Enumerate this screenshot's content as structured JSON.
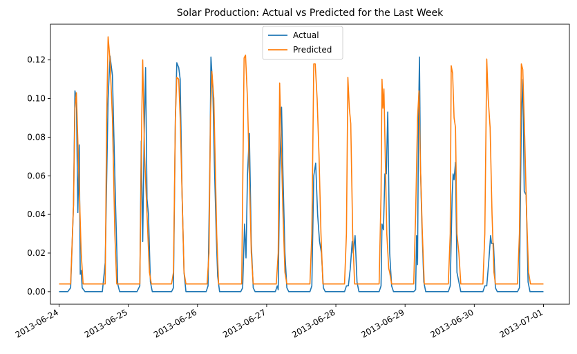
{
  "chart_data": {
    "type": "line",
    "title": "Solar Production: Actual vs Predicted for the Last Week",
    "xlabel": "",
    "ylabel": "",
    "x_unit": "day",
    "xlim": [
      "2013-06-23 21:00",
      "2013-07-01 09:00"
    ],
    "ylim": [
      -0.0065,
      0.1385
    ],
    "x_ticks": [
      "2013-06-24",
      "2013-06-25",
      "2013-06-26",
      "2013-06-27",
      "2013-06-28",
      "2013-06-29",
      "2013-06-30",
      "2013-07-01"
    ],
    "y_ticks": [
      "0.00",
      "0.02",
      "0.04",
      "0.06",
      "0.08",
      "0.10",
      "0.12"
    ],
    "y_tick_values": [
      0,
      0.02,
      0.04,
      0.06,
      0.08,
      0.1,
      0.12
    ],
    "grid": false,
    "legend_position": "top-center",
    "series": [
      {
        "name": "Actual",
        "color": "#1f77b4",
        "points": [
          [
            "2013-06-24 00:00",
            0
          ],
          [
            "2013-06-24 03:00",
            0
          ],
          [
            "2013-06-24 04:00",
            0.002
          ],
          [
            "2013-06-24 05:00",
            0.045
          ],
          [
            "2013-06-24 05:30",
            0.104
          ],
          [
            "2013-06-24 06:00",
            0.1
          ],
          [
            "2013-06-24 06:30",
            0.041
          ],
          [
            "2013-06-24 07:00",
            0.076
          ],
          [
            "2013-06-24 07:20",
            0.009
          ],
          [
            "2013-06-24 07:40",
            0.011
          ],
          [
            "2013-06-24 08:00",
            0.002
          ],
          [
            "2013-06-24 09:00",
            0
          ],
          [
            "2013-06-24 15:00",
            0
          ],
          [
            "2013-06-24 16:00",
            0.015
          ],
          [
            "2013-06-24 17:00",
            0.1
          ],
          [
            "2013-06-24 17:40",
            0.122
          ],
          [
            "2013-06-24 18:30",
            0.112
          ],
          [
            "2013-06-24 19:30",
            0.05
          ],
          [
            "2013-06-24 20:20",
            0.004
          ],
          [
            "2013-06-24 21:00",
            0
          ],
          [
            "2013-06-25 03:00",
            0
          ],
          [
            "2013-06-25 04:00",
            0.003
          ],
          [
            "2013-06-25 04:30",
            0.078
          ],
          [
            "2013-06-25 05:00",
            0.026
          ],
          [
            "2013-06-25 05:30",
            0.08
          ],
          [
            "2013-06-25 06:00",
            0.116
          ],
          [
            "2013-06-25 06:30",
            0.048
          ],
          [
            "2013-06-25 07:00",
            0.04
          ],
          [
            "2013-06-25 07:40",
            0.005
          ],
          [
            "2013-06-25 08:20",
            0
          ],
          [
            "2013-06-25 15:00",
            0
          ],
          [
            "2013-06-25 15:40",
            0.002
          ],
          [
            "2013-06-25 16:20",
            0.09
          ],
          [
            "2013-06-25 16:50",
            0.1185
          ],
          [
            "2013-06-25 17:30",
            0.116
          ],
          [
            "2013-06-25 18:00",
            0.11
          ],
          [
            "2013-06-25 18:40",
            0.05
          ],
          [
            "2013-06-25 19:20",
            0.01
          ],
          [
            "2013-06-25 20:00",
            0
          ],
          [
            "2013-06-26 03:00",
            0
          ],
          [
            "2013-06-26 03:40",
            0.003
          ],
          [
            "2013-06-26 04:20",
            0.07
          ],
          [
            "2013-06-26 04:40",
            0.1215
          ],
          [
            "2013-06-26 05:20",
            0.105
          ],
          [
            "2013-06-26 05:50",
            0.068
          ],
          [
            "2013-06-26 06:30",
            0.03
          ],
          [
            "2013-06-26 07:00",
            0.008
          ],
          [
            "2013-06-26 07:40",
            0
          ],
          [
            "2013-06-26 15:00",
            0
          ],
          [
            "2013-06-26 15:40",
            0.002
          ],
          [
            "2013-06-26 16:20",
            0.035
          ],
          [
            "2013-06-26 16:50",
            0.0175
          ],
          [
            "2013-06-26 17:20",
            0.06
          ],
          [
            "2013-06-26 18:00",
            0.082
          ],
          [
            "2013-06-26 18:40",
            0.025
          ],
          [
            "2013-06-26 19:20",
            0.002
          ],
          [
            "2013-06-26 20:00",
            0
          ],
          [
            "2013-06-27 03:00",
            0
          ],
          [
            "2013-06-27 03:40",
            0.003
          ],
          [
            "2013-06-27 04:00",
            0.001
          ],
          [
            "2013-06-27 04:30",
            0.06
          ],
          [
            "2013-06-27 05:10",
            0.0955
          ],
          [
            "2013-06-27 05:40",
            0.06
          ],
          [
            "2013-06-27 06:20",
            0.02
          ],
          [
            "2013-06-27 07:00",
            0.002
          ],
          [
            "2013-06-27 07:40",
            0
          ],
          [
            "2013-06-27 15:00",
            0
          ],
          [
            "2013-06-27 15:40",
            0.003
          ],
          [
            "2013-06-27 16:20",
            0.06
          ],
          [
            "2013-06-27 17:00",
            0.0665
          ],
          [
            "2013-06-27 17:40",
            0.04
          ],
          [
            "2013-06-27 18:20",
            0.026
          ],
          [
            "2013-06-27 19:00",
            0.02
          ],
          [
            "2013-06-27 19:40",
            0.002
          ],
          [
            "2013-06-27 20:20",
            0
          ],
          [
            "2013-06-28 03:00",
            0
          ],
          [
            "2013-06-28 03:40",
            0.003
          ],
          [
            "2013-06-28 04:20",
            0.003
          ],
          [
            "2013-06-28 05:00",
            0.012
          ],
          [
            "2013-06-28 05:40",
            0.026
          ],
          [
            "2013-06-28 06:00",
            0.02
          ],
          [
            "2013-06-28 06:40",
            0.029
          ],
          [
            "2013-06-28 07:20",
            0.005
          ],
          [
            "2013-06-28 08:00",
            0
          ],
          [
            "2013-06-28 15:00",
            0
          ],
          [
            "2013-06-28 15:40",
            0.003
          ],
          [
            "2013-06-28 16:00",
            0.035
          ],
          [
            "2013-06-28 16:30",
            0.032
          ],
          [
            "2013-06-28 17:00",
            0.061
          ],
          [
            "2013-06-28 17:30",
            0.061
          ],
          [
            "2013-06-28 18:00",
            0.093
          ],
          [
            "2013-06-28 18:40",
            0.02
          ],
          [
            "2013-06-28 19:20",
            0.003
          ],
          [
            "2013-06-28 20:00",
            0
          ],
          [
            "2013-06-29 03:00",
            0
          ],
          [
            "2013-06-29 03:40",
            0.001
          ],
          [
            "2013-06-29 04:00",
            0.029
          ],
          [
            "2013-06-29 04:20",
            0.014
          ],
          [
            "2013-06-29 04:40",
            0.09
          ],
          [
            "2013-06-29 05:00",
            0.1215
          ],
          [
            "2013-06-29 05:20",
            0.065
          ],
          [
            "2013-06-29 05:50",
            0.035
          ],
          [
            "2013-06-29 06:30",
            0.005
          ],
          [
            "2013-06-29 07:10",
            0
          ],
          [
            "2013-06-29 15:00",
            0
          ],
          [
            "2013-06-29 15:40",
            0.003
          ],
          [
            "2013-06-29 16:20",
            0.05
          ],
          [
            "2013-06-29 16:40",
            0.061
          ],
          [
            "2013-06-29 17:00",
            0.058
          ],
          [
            "2013-06-29 17:30",
            0.067
          ],
          [
            "2013-06-29 18:00",
            0.01
          ],
          [
            "2013-06-29 18:40",
            0.005
          ],
          [
            "2013-06-29 19:20",
            0
          ],
          [
            "2013-06-30 03:00",
            0
          ],
          [
            "2013-06-30 03:40",
            0.003
          ],
          [
            "2013-06-30 04:20",
            0.003
          ],
          [
            "2013-06-30 05:00",
            0.015
          ],
          [
            "2013-06-30 05:40",
            0.029
          ],
          [
            "2013-06-30 06:00",
            0.025
          ],
          [
            "2013-06-30 06:40",
            0.025
          ],
          [
            "2013-06-30 07:20",
            0.002
          ],
          [
            "2013-06-30 08:00",
            0
          ],
          [
            "2013-06-30 15:00",
            0
          ],
          [
            "2013-06-30 15:40",
            0.002
          ],
          [
            "2013-06-30 16:20",
            0.09
          ],
          [
            "2013-06-30 16:50",
            0.11
          ],
          [
            "2013-06-30 17:20",
            0.052
          ],
          [
            "2013-06-30 18:00",
            0.05
          ],
          [
            "2013-06-30 18:40",
            0.005
          ],
          [
            "2013-06-30 19:20",
            0
          ],
          [
            "2013-07-01 00:00",
            0
          ]
        ]
      },
      {
        "name": "Predicted",
        "color": "#ff7f0e",
        "points": [
          [
            "2013-06-24 00:00",
            0.004
          ],
          [
            "2013-06-24 04:00",
            0.004
          ],
          [
            "2013-06-24 05:00",
            0.045
          ],
          [
            "2013-06-24 05:30",
            0.095
          ],
          [
            "2013-06-24 06:00",
            0.103
          ],
          [
            "2013-06-24 06:40",
            0.07
          ],
          [
            "2013-06-24 07:40",
            0.02
          ],
          [
            "2013-06-24 08:20",
            0.004
          ],
          [
            "2013-06-24 16:00",
            0.004
          ],
          [
            "2013-06-24 16:30",
            0.09
          ],
          [
            "2013-06-24 17:00",
            0.132
          ],
          [
            "2013-06-24 17:40",
            0.12
          ],
          [
            "2013-06-24 18:30",
            0.09
          ],
          [
            "2013-06-24 19:20",
            0.03
          ],
          [
            "2013-06-24 20:00",
            0.004
          ],
          [
            "2013-06-25 04:00",
            0.004
          ],
          [
            "2013-06-25 04:40",
            0.09
          ],
          [
            "2013-06-25 05:00",
            0.12
          ],
          [
            "2013-06-25 05:40",
            0.07
          ],
          [
            "2013-06-25 06:30",
            0.04
          ],
          [
            "2013-06-25 07:20",
            0.01
          ],
          [
            "2013-06-25 08:00",
            0.004
          ],
          [
            "2013-06-25 15:00",
            0.004
          ],
          [
            "2013-06-25 15:40",
            0.01
          ],
          [
            "2013-06-25 16:20",
            0.09
          ],
          [
            "2013-06-25 16:50",
            0.111
          ],
          [
            "2013-06-25 17:30",
            0.11
          ],
          [
            "2013-06-25 18:00",
            0.09
          ],
          [
            "2013-06-25 18:40",
            0.05
          ],
          [
            "2013-06-25 19:20",
            0.01
          ],
          [
            "2013-06-25 20:00",
            0.004
          ],
          [
            "2013-06-26 03:20",
            0.004
          ],
          [
            "2013-06-26 04:00",
            0.02
          ],
          [
            "2013-06-26 04:30",
            0.09
          ],
          [
            "2013-06-26 05:00",
            0.114
          ],
          [
            "2013-06-26 05:40",
            0.1
          ],
          [
            "2013-06-26 06:10",
            0.066
          ],
          [
            "2013-06-26 06:40",
            0.03
          ],
          [
            "2013-06-26 07:20",
            0.004
          ],
          [
            "2013-06-26 15:20",
            0.004
          ],
          [
            "2013-06-26 16:10",
            0.121
          ],
          [
            "2013-06-26 16:40",
            0.1225
          ],
          [
            "2013-06-26 17:20",
            0.1
          ],
          [
            "2013-06-26 18:00",
            0.06
          ],
          [
            "2013-06-26 18:40",
            0.02
          ],
          [
            "2013-06-26 19:20",
            0.004
          ],
          [
            "2013-06-27 03:20",
            0.004
          ],
          [
            "2013-06-27 04:00",
            0.02
          ],
          [
            "2013-06-27 04:30",
            0.108
          ],
          [
            "2013-06-27 05:00",
            0.08
          ],
          [
            "2013-06-27 05:40",
            0.04
          ],
          [
            "2013-06-27 06:20",
            0.01
          ],
          [
            "2013-06-27 07:00",
            0.004
          ],
          [
            "2013-06-27 15:00",
            0.004
          ],
          [
            "2013-06-27 15:40",
            0.03
          ],
          [
            "2013-06-27 16:20",
            0.118
          ],
          [
            "2013-06-27 16:50",
            0.118
          ],
          [
            "2013-06-27 17:30",
            0.1
          ],
          [
            "2013-06-27 18:10",
            0.07
          ],
          [
            "2013-06-27 18:50",
            0.03
          ],
          [
            "2013-06-27 19:30",
            0.004
          ],
          [
            "2013-06-28 03:00",
            0.004
          ],
          [
            "2013-06-28 03:40",
            0.03
          ],
          [
            "2013-06-28 04:10",
            0.111
          ],
          [
            "2013-06-28 04:40",
            0.095
          ],
          [
            "2013-06-28 05:10",
            0.087
          ],
          [
            "2013-06-28 05:50",
            0.03
          ],
          [
            "2013-06-28 06:30",
            0.004
          ],
          [
            "2013-06-28 15:00",
            0.004
          ],
          [
            "2013-06-28 15:40",
            0.05
          ],
          [
            "2013-06-28 16:00",
            0.11
          ],
          [
            "2013-06-28 16:20",
            0.095
          ],
          [
            "2013-06-28 16:40",
            0.105
          ],
          [
            "2013-06-28 17:00",
            0.08
          ],
          [
            "2013-06-28 17:40",
            0.03
          ],
          [
            "2013-06-28 18:20",
            0.012
          ],
          [
            "2013-06-28 18:40",
            0.01
          ],
          [
            "2013-06-28 19:20",
            0.004
          ],
          [
            "2013-06-29 03:00",
            0.004
          ],
          [
            "2013-06-29 03:40",
            0.04
          ],
          [
            "2013-06-29 04:20",
            0.09
          ],
          [
            "2013-06-29 04:50",
            0.104
          ],
          [
            "2013-06-29 05:20",
            0.065
          ],
          [
            "2013-06-29 06:00",
            0.03
          ],
          [
            "2013-06-29 06:40",
            0.004
          ],
          [
            "2013-06-29 15:00",
            0.004
          ],
          [
            "2013-06-29 15:40",
            0.03
          ],
          [
            "2013-06-29 16:00",
            0.117
          ],
          [
            "2013-06-29 16:30",
            0.113
          ],
          [
            "2013-06-29 17:00",
            0.09
          ],
          [
            "2013-06-29 17:30",
            0.085
          ],
          [
            "2013-06-29 18:00",
            0.03
          ],
          [
            "2013-06-29 18:40",
            0.02
          ],
          [
            "2013-06-29 19:20",
            0.004
          ],
          [
            "2013-06-30 03:00",
            0.004
          ],
          [
            "2013-06-30 03:40",
            0.03
          ],
          [
            "2013-06-30 04:20",
            0.1205
          ],
          [
            "2013-06-30 04:50",
            0.1
          ],
          [
            "2013-06-30 05:30",
            0.085
          ],
          [
            "2013-06-30 06:10",
            0.04
          ],
          [
            "2013-06-30 06:50",
            0.01
          ],
          [
            "2013-06-30 07:20",
            0.004
          ],
          [
            "2013-06-30 15:00",
            0.004
          ],
          [
            "2013-06-30 15:40",
            0.03
          ],
          [
            "2013-06-30 16:20",
            0.118
          ],
          [
            "2013-06-30 16:50",
            0.115
          ],
          [
            "2013-06-30 17:30",
            0.08
          ],
          [
            "2013-06-30 18:10",
            0.04
          ],
          [
            "2013-06-30 18:50",
            0.01
          ],
          [
            "2013-06-30 19:30",
            0.004
          ],
          [
            "2013-07-01 00:00",
            0.004
          ]
        ]
      }
    ]
  }
}
